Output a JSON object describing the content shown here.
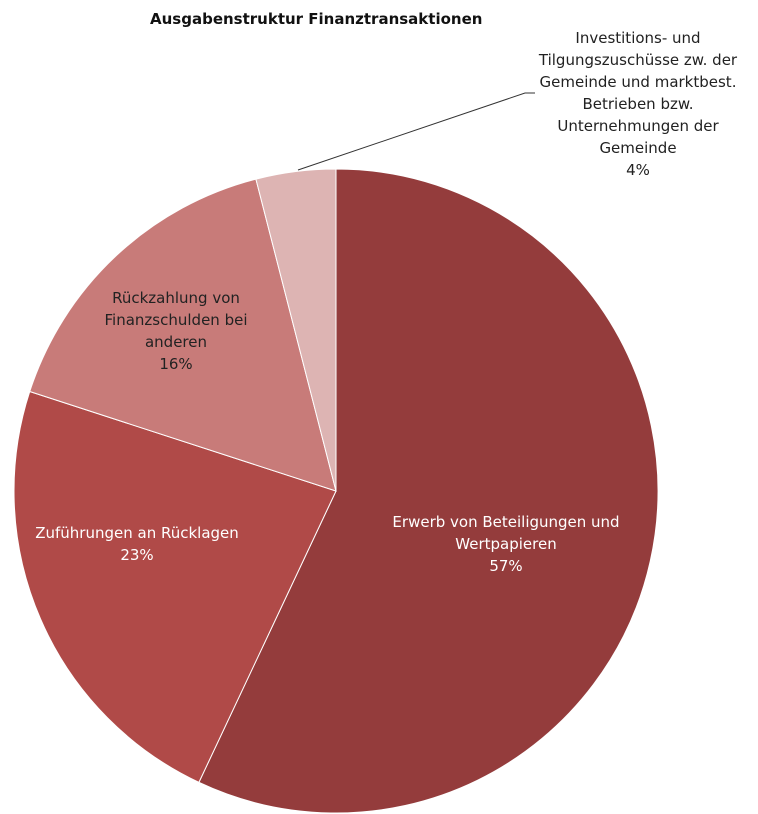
{
  "chart_data": {
    "type": "pie",
    "title": "Ausgabenstruktur Finanztransaktionen",
    "categories": [
      "Erwerb von Beteiligungen und Wertpapieren",
      "Zuführungen an Rücklagen",
      "Rückzahlung von Finanzschulden bei anderen",
      "Investitions- und Tilgungszuschüsse zw. der Gemeinde und marktbest. Betrieben bzw. Unternehmungen der Gemeinde"
    ],
    "values": [
      57,
      23,
      16,
      4
    ],
    "value_labels": [
      "57%",
      "23%",
      "16%",
      "4%"
    ],
    "colors": [
      "#943c3c",
      "#b04a48",
      "#c87b79",
      "#ddb4b3"
    ]
  }
}
